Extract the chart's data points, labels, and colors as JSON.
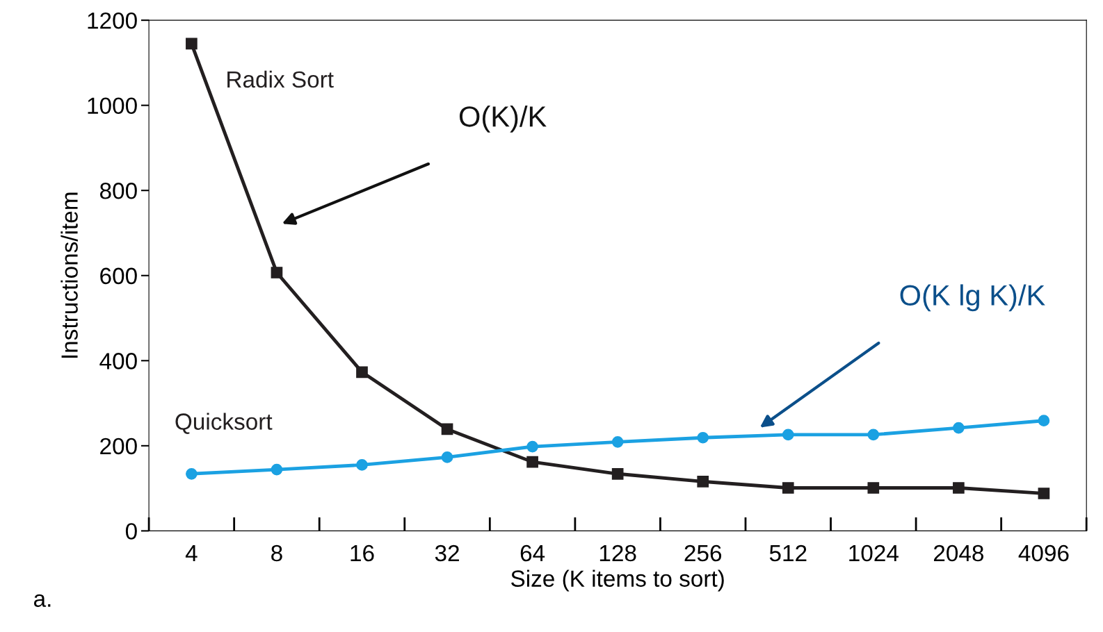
{
  "chart_data": {
    "type": "line",
    "xlabel": "Size (K items to sort)",
    "ylabel": "Instructions/item",
    "categories": [
      "4",
      "8",
      "16",
      "32",
      "64",
      "128",
      "256",
      "512",
      "1024",
      "2048",
      "4096"
    ],
    "series": [
      {
        "name": "Radix Sort",
        "color": "#231f20",
        "marker": "square",
        "values": [
          1145,
          607,
          373,
          239,
          162,
          134,
          116,
          101,
          101,
          101,
          88
        ]
      },
      {
        "name": "Quicksort",
        "color": "#1ba1e2",
        "marker": "circle",
        "values": [
          134,
          144,
          155,
          173,
          198,
          209,
          219,
          226,
          226,
          242,
          259
        ]
      }
    ],
    "ylim": [
      0,
      1200
    ],
    "yticks": [
      0,
      200,
      400,
      600,
      800,
      1000,
      1200
    ],
    "grid": false,
    "legend": false,
    "line_style": "solid",
    "annotations": [
      "O(K)/K",
      "O(K lg K)/K",
      "a."
    ]
  }
}
